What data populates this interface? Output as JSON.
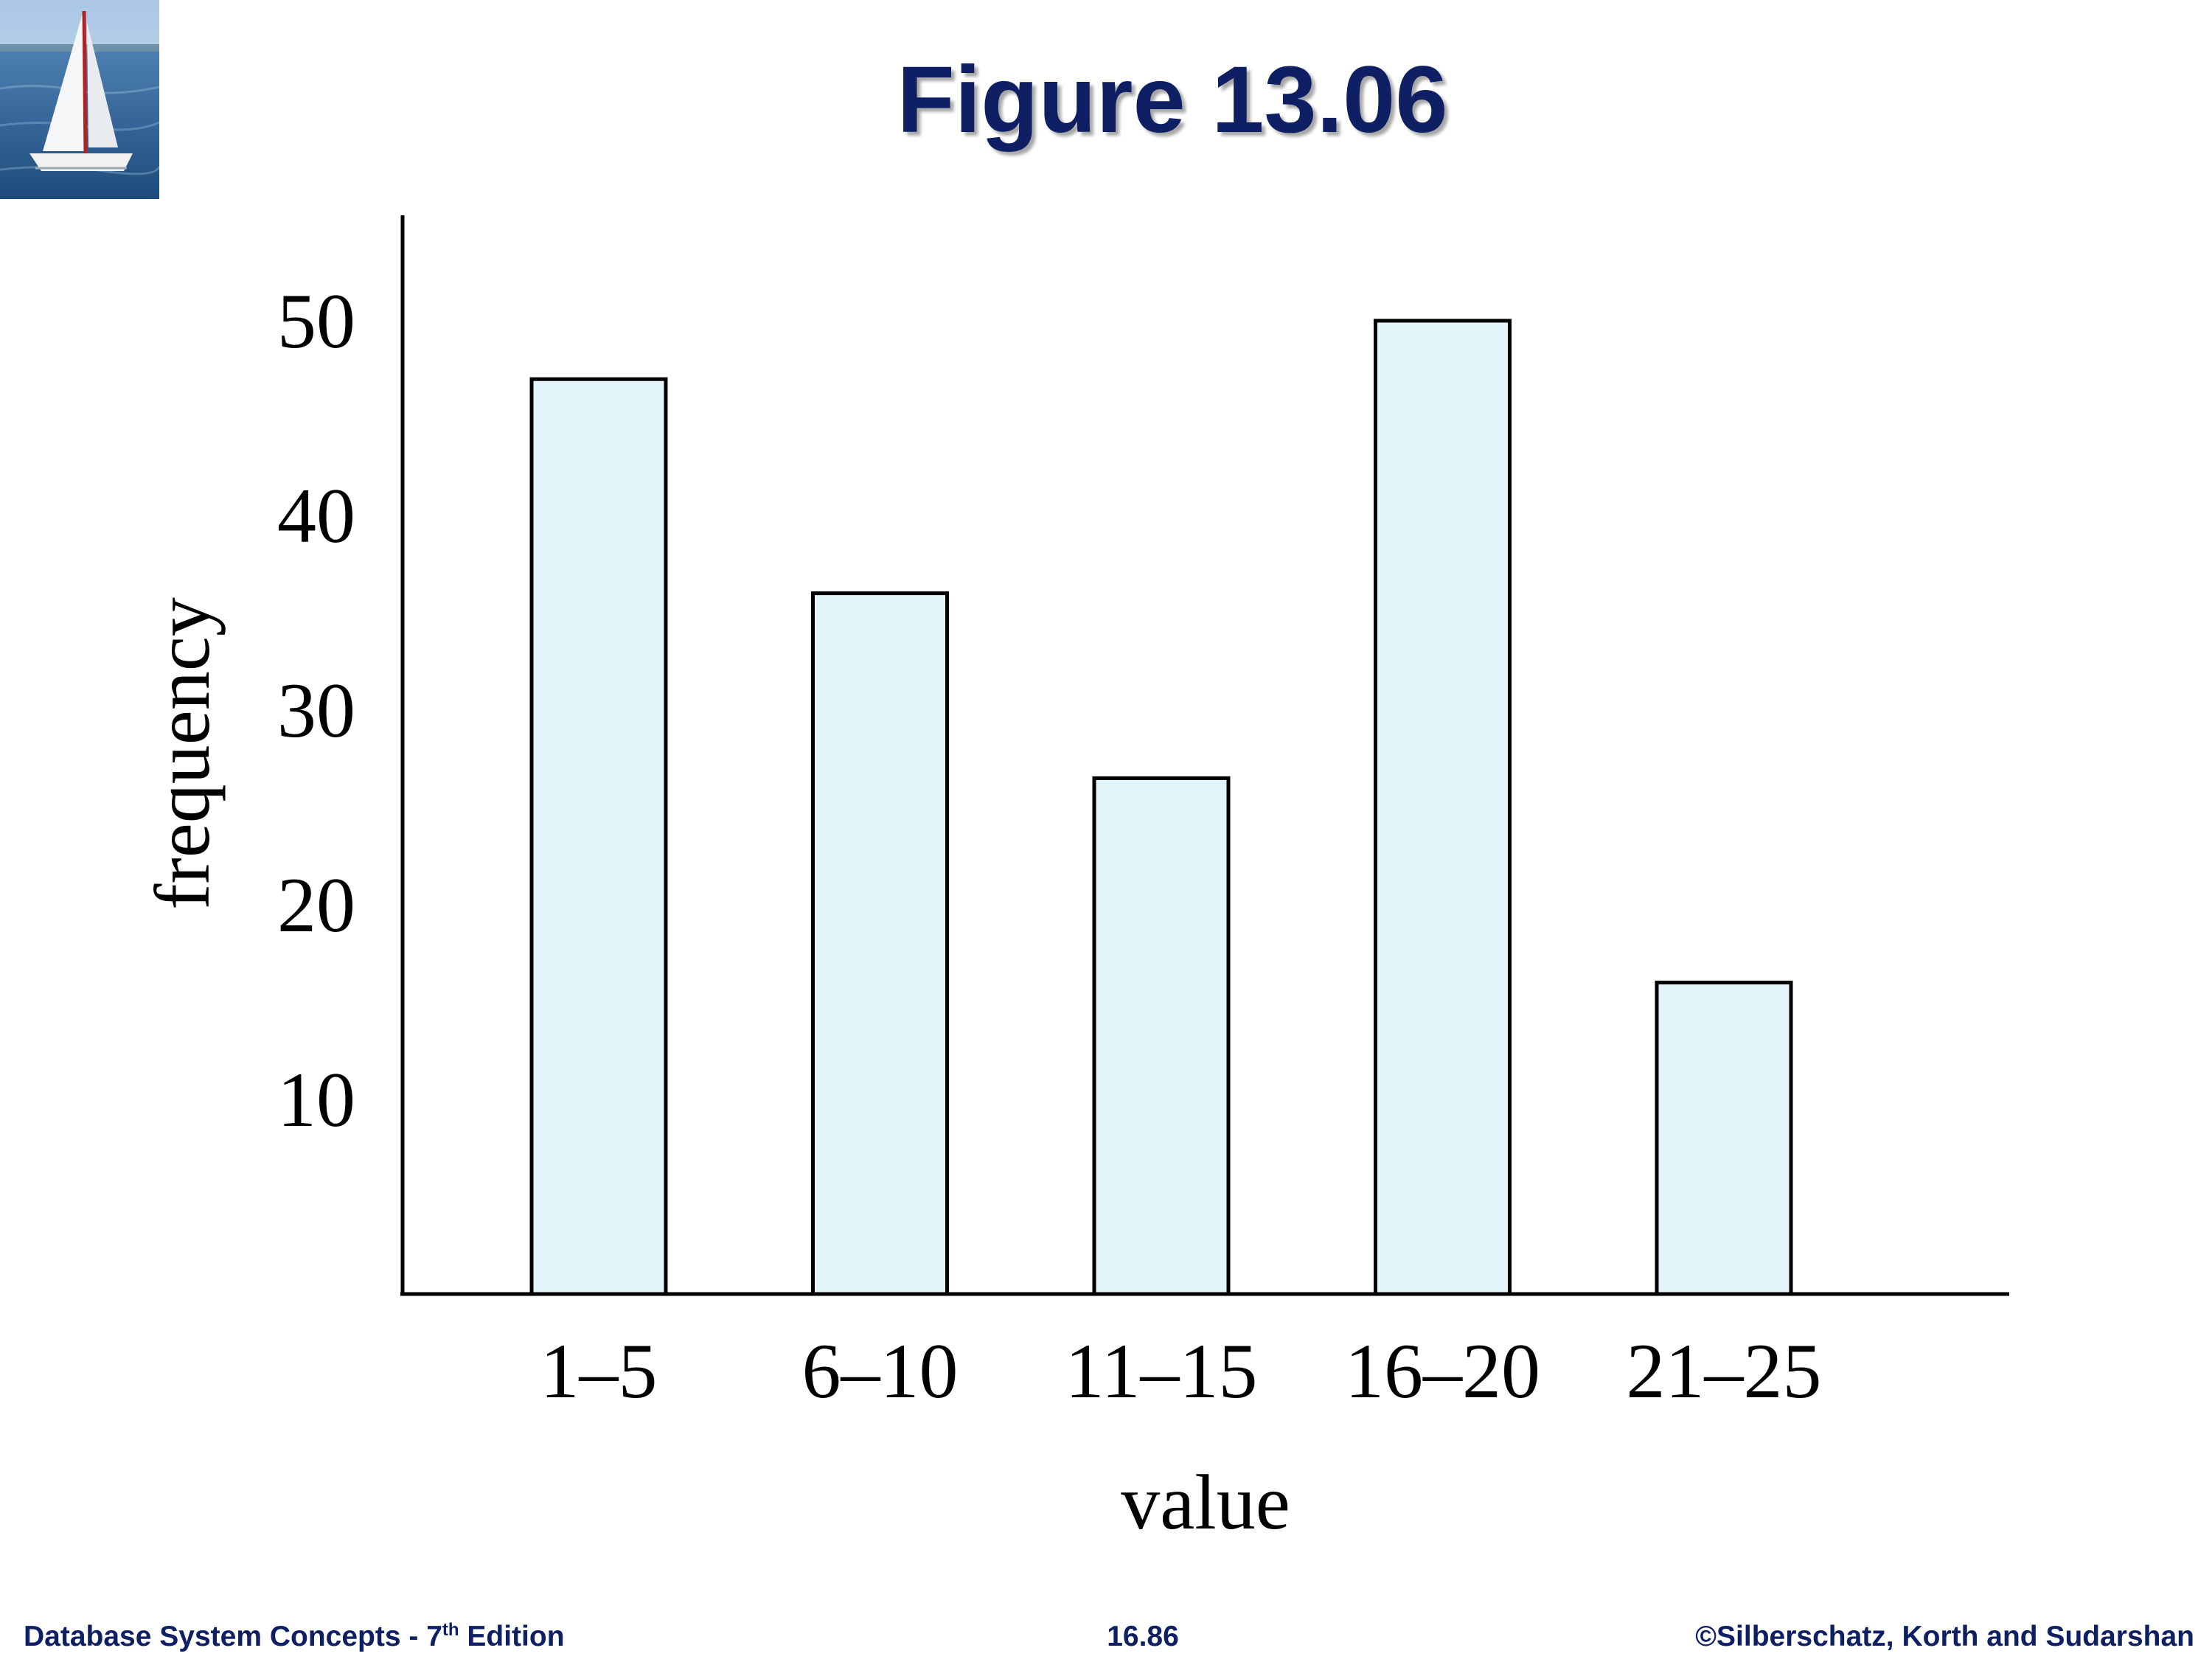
{
  "slide": {
    "title": "Figure 13.06",
    "logo_icon": "sailboat-icon"
  },
  "chart_data": {
    "type": "bar",
    "categories": [
      "1–5",
      "6–10",
      "11–15",
      "16–20",
      "21–25"
    ],
    "values": [
      47,
      36,
      26.5,
      50,
      16
    ],
    "xlabel": "value",
    "ylabel": "frequency",
    "ylim": [
      0,
      55
    ],
    "yticks": [
      "10",
      "20",
      "30",
      "40",
      "50"
    ],
    "grid": false,
    "bar_fill": "#e3f4fb",
    "bar_stroke": "#000000"
  },
  "footer": {
    "book_prefix": "Database System Concepts - 7",
    "book_sup": "th",
    "book_suffix": " Edition",
    "page_number": "16.86",
    "copyright": "©Silberschatz, Korth and Sudarshan"
  },
  "colors": {
    "title": "#0e1f64",
    "footer": "#0e1f64"
  }
}
